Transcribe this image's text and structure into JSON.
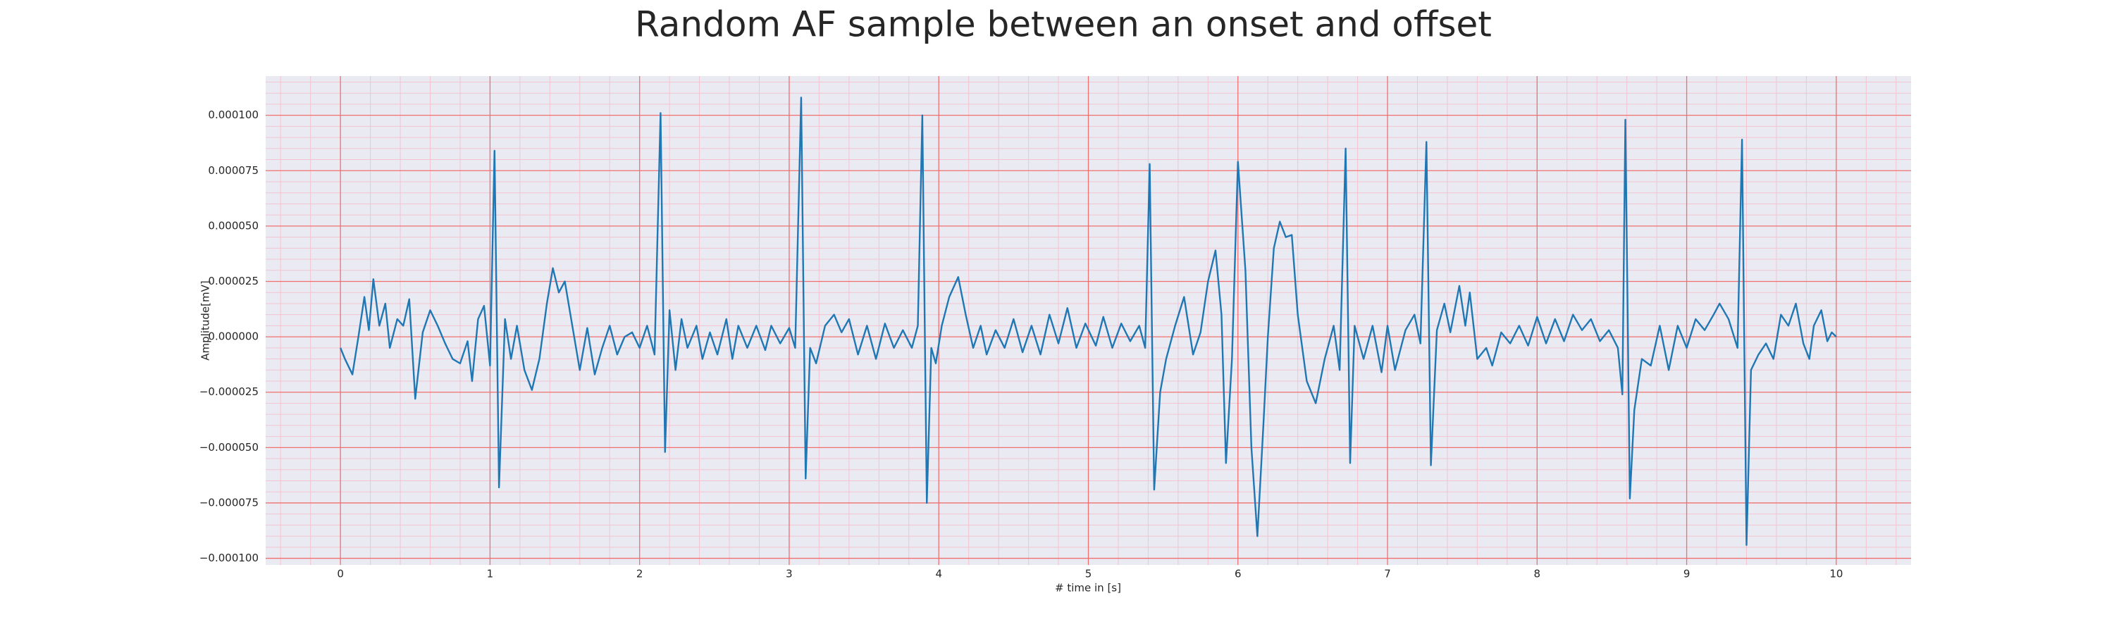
{
  "chart_data": {
    "type": "line",
    "title": "Random AF sample between an onset and offset",
    "x_label": "# time in [s]",
    "y_label": "Amplitude[mV]",
    "color": "#1f77b4",
    "grid": true,
    "minor_grid": true,
    "xlim": [
      -0.5,
      10.5
    ],
    "ylim": [
      -0.000103,
      0.0001177
    ],
    "xticks": [
      0,
      1,
      2,
      3,
      4,
      5,
      6,
      7,
      8,
      9,
      10
    ],
    "yticks": [
      {
        "value": -0.0001,
        "label": "−0.000100"
      },
      {
        "value": -7.5e-05,
        "label": "−0.000075"
      },
      {
        "value": -5e-05,
        "label": "−0.000050"
      },
      {
        "value": -2.5e-05,
        "label": "−0.000025"
      },
      {
        "value": 0,
        "label": "0.000000"
      },
      {
        "value": 2.5e-05,
        "label": "0.000025"
      },
      {
        "value": 5e-05,
        "label": "0.000050"
      },
      {
        "value": 7.5e-05,
        "label": "0.000075"
      },
      {
        "value": 0.0001,
        "label": "0.000100"
      }
    ],
    "x": [
      0,
      0.03,
      0.08,
      0.12,
      0.16,
      0.19,
      0.22,
      0.26,
      0.3,
      0.33,
      0.38,
      0.42,
      0.46,
      0.5,
      0.55,
      0.6,
      0.65,
      0.7,
      0.75,
      0.8,
      0.85,
      0.88,
      0.92,
      0.96,
      1.0,
      1.03,
      1.06,
      1.1,
      1.14,
      1.18,
      1.23,
      1.28,
      1.33,
      1.38,
      1.42,
      1.46,
      1.5,
      1.55,
      1.6,
      1.65,
      1.7,
      1.75,
      1.8,
      1.85,
      1.9,
      1.95,
      2.0,
      2.05,
      2.1,
      2.14,
      2.17,
      2.2,
      2.24,
      2.28,
      2.32,
      2.38,
      2.42,
      2.47,
      2.52,
      2.58,
      2.62,
      2.66,
      2.72,
      2.78,
      2.84,
      2.88,
      2.94,
      3.0,
      3.04,
      3.08,
      3.11,
      3.14,
      3.18,
      3.24,
      3.3,
      3.35,
      3.4,
      3.46,
      3.52,
      3.58,
      3.64,
      3.7,
      3.76,
      3.82,
      3.86,
      3.89,
      3.92,
      3.95,
      3.98,
      4.02,
      4.07,
      4.13,
      4.18,
      4.23,
      4.28,
      4.32,
      4.38,
      4.44,
      4.5,
      4.56,
      4.62,
      4.68,
      4.74,
      4.8,
      4.86,
      4.92,
      4.98,
      5.05,
      5.1,
      5.16,
      5.22,
      5.28,
      5.34,
      5.38,
      5.41,
      5.44,
      5.48,
      5.52,
      5.58,
      5.64,
      5.7,
      5.75,
      5.8,
      5.85,
      5.89,
      5.92,
      5.96,
      6.0,
      6.05,
      6.09,
      6.13,
      6.17,
      6.2,
      6.24,
      6.28,
      6.32,
      6.36,
      6.4,
      6.46,
      6.52,
      6.58,
      6.64,
      6.68,
      6.72,
      6.75,
      6.78,
      6.84,
      6.9,
      6.96,
      7.0,
      7.05,
      7.12,
      7.18,
      7.22,
      7.26,
      7.29,
      7.33,
      7.38,
      7.42,
      7.48,
      7.52,
      7.55,
      7.6,
      7.66,
      7.7,
      7.76,
      7.82,
      7.88,
      7.94,
      8.0,
      8.06,
      8.12,
      8.18,
      8.24,
      8.3,
      8.36,
      8.42,
      8.48,
      8.54,
      8.57,
      8.59,
      8.62,
      8.65,
      8.7,
      8.76,
      8.82,
      8.88,
      8.94,
      9.0,
      9.06,
      9.12,
      9.18,
      9.22,
      9.28,
      9.34,
      9.37,
      9.4,
      9.43,
      9.48,
      9.53,
      9.58,
      9.63,
      9.68,
      9.73,
      9.78,
      9.82,
      9.85,
      9.9,
      9.94,
      9.97,
      10.0
    ],
    "values": [
      -5e-06,
      -1e-05,
      -1.7e-05,
      0,
      1.8e-05,
      3e-06,
      2.6e-05,
      5e-06,
      1.5e-05,
      -5e-06,
      8e-06,
      5e-06,
      1.7e-05,
      -2.8e-05,
      2e-06,
      1.2e-05,
      5e-06,
      -3e-06,
      -1e-05,
      -1.2e-05,
      -2e-06,
      -2e-05,
      8e-06,
      1.4e-05,
      -1.3e-05,
      8.4e-05,
      -6.8e-05,
      8e-06,
      -1e-05,
      5e-06,
      -1.5e-05,
      -2.4e-05,
      -1e-05,
      1.5e-05,
      3.1e-05,
      2e-05,
      2.5e-05,
      5e-06,
      -1.5e-05,
      4e-06,
      -1.7e-05,
      -5e-06,
      5e-06,
      -8e-06,
      0,
      2e-06,
      -5e-06,
      5e-06,
      -8e-06,
      0.000101,
      -5.2e-05,
      1.2e-05,
      -1.5e-05,
      8e-06,
      -5e-06,
      5e-06,
      -1e-05,
      2e-06,
      -8e-06,
      8e-06,
      -1e-05,
      5e-06,
      -5e-06,
      5e-06,
      -6e-06,
      5e-06,
      -3e-06,
      4e-06,
      -5e-06,
      0.000108,
      -6.4e-05,
      -5e-06,
      -1.2e-05,
      5e-06,
      1e-05,
      2e-06,
      8e-06,
      -8e-06,
      5e-06,
      -1e-05,
      6e-06,
      -5e-06,
      3e-06,
      -5e-06,
      5e-06,
      0.0001,
      -7.5e-05,
      -5e-06,
      -1.2e-05,
      5e-06,
      1.8e-05,
      2.7e-05,
      1e-05,
      -5e-06,
      5e-06,
      -8e-06,
      3e-06,
      -5e-06,
      8e-06,
      -7e-06,
      5e-06,
      -8e-06,
      1e-05,
      -3e-06,
      1.3e-05,
      -5e-06,
      6e-06,
      -4e-06,
      9e-06,
      -5e-06,
      6e-06,
      -2e-06,
      5e-06,
      -5e-06,
      7.8e-05,
      -6.9e-05,
      -2.5e-05,
      -1e-05,
      5e-06,
      1.8e-05,
      -8e-06,
      2e-06,
      2.5e-05,
      3.9e-05,
      1e-05,
      -5.7e-05,
      -1e-05,
      7.9e-05,
      3e-05,
      -5e-05,
      -9e-05,
      -4e-05,
      0,
      4e-05,
      5.2e-05,
      4.5e-05,
      4.6e-05,
      1e-05,
      -2e-05,
      -3e-05,
      -1e-05,
      5e-06,
      -1.5e-05,
      8.5e-05,
      -5.7e-05,
      5e-06,
      -1e-05,
      5e-06,
      -1.6e-05,
      5e-06,
      -1.5e-05,
      3e-06,
      1e-05,
      -3e-06,
      8.8e-05,
      -5.8e-05,
      3e-06,
      1.5e-05,
      2e-06,
      2.3e-05,
      5e-06,
      2e-05,
      -1e-05,
      -5e-06,
      -1.3e-05,
      2e-06,
      -3e-06,
      5e-06,
      -4e-06,
      9e-06,
      -3e-06,
      8e-06,
      -2e-06,
      1e-05,
      3e-06,
      8e-06,
      -2e-06,
      3e-06,
      -5e-06,
      -2.6e-05,
      9.8e-05,
      -7.3e-05,
      -3.3e-05,
      -1e-05,
      -1.3e-05,
      5e-06,
      -1.5e-05,
      5e-06,
      -5e-06,
      8e-06,
      3e-06,
      1e-05,
      1.5e-05,
      8e-06,
      -5e-06,
      8.9e-05,
      -9.4e-05,
      -1.5e-05,
      -8e-06,
      -3e-06,
      -1e-05,
      1e-05,
      5e-06,
      1.5e-05,
      -3e-06,
      -1e-05,
      5e-06,
      1.2e-05,
      -2e-06,
      2e-06,
      0
    ]
  }
}
